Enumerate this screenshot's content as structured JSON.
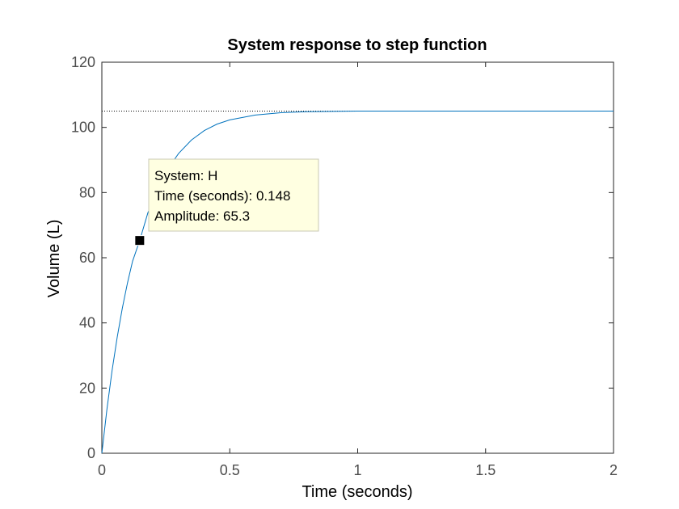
{
  "chart_data": {
    "type": "line",
    "title": "System response to step function",
    "xlabel": "Time (seconds)",
    "ylabel": "Volume (L)",
    "xlim": [
      0,
      2
    ],
    "ylim": [
      0,
      120
    ],
    "xticks": [
      0,
      0.5,
      1,
      1.5,
      2
    ],
    "xtick_labels": [
      "0",
      "0.5",
      "1",
      "1.5",
      "2"
    ],
    "yticks": [
      0,
      20,
      40,
      60,
      80,
      100,
      120
    ],
    "ytick_labels": [
      "0",
      "20",
      "40",
      "60",
      "80",
      "100",
      "120"
    ],
    "grid": false,
    "series": [
      {
        "name": "H",
        "color": "#0072bd",
        "x": [
          0,
          0.02,
          0.04,
          0.06,
          0.08,
          0.1,
          0.12,
          0.148,
          0.18,
          0.22,
          0.26,
          0.3,
          0.35,
          0.4,
          0.45,
          0.5,
          0.6,
          0.7,
          0.8,
          0.9,
          1.0,
          1.2,
          1.5,
          2.0
        ],
        "values": [
          0,
          13.6,
          25.4,
          35.6,
          44.5,
          52.2,
          58.9,
          65.3,
          73.8,
          81.4,
          87.5,
          92.0,
          96.1,
          99.0,
          101.0,
          102.3,
          103.8,
          104.5,
          104.8,
          104.9,
          105.0,
          105.0,
          105.0,
          105.0
        ]
      }
    ],
    "steady_state": {
      "value": 105,
      "style": "dotted",
      "color": "#000000"
    },
    "datatip": {
      "x": 0.148,
      "y": 65.3,
      "lines": [
        "System: H",
        "Time (seconds): 0.148",
        "Amplitude: 65.3"
      ],
      "background": "#ffffe1",
      "marker_color": "#000000"
    }
  }
}
